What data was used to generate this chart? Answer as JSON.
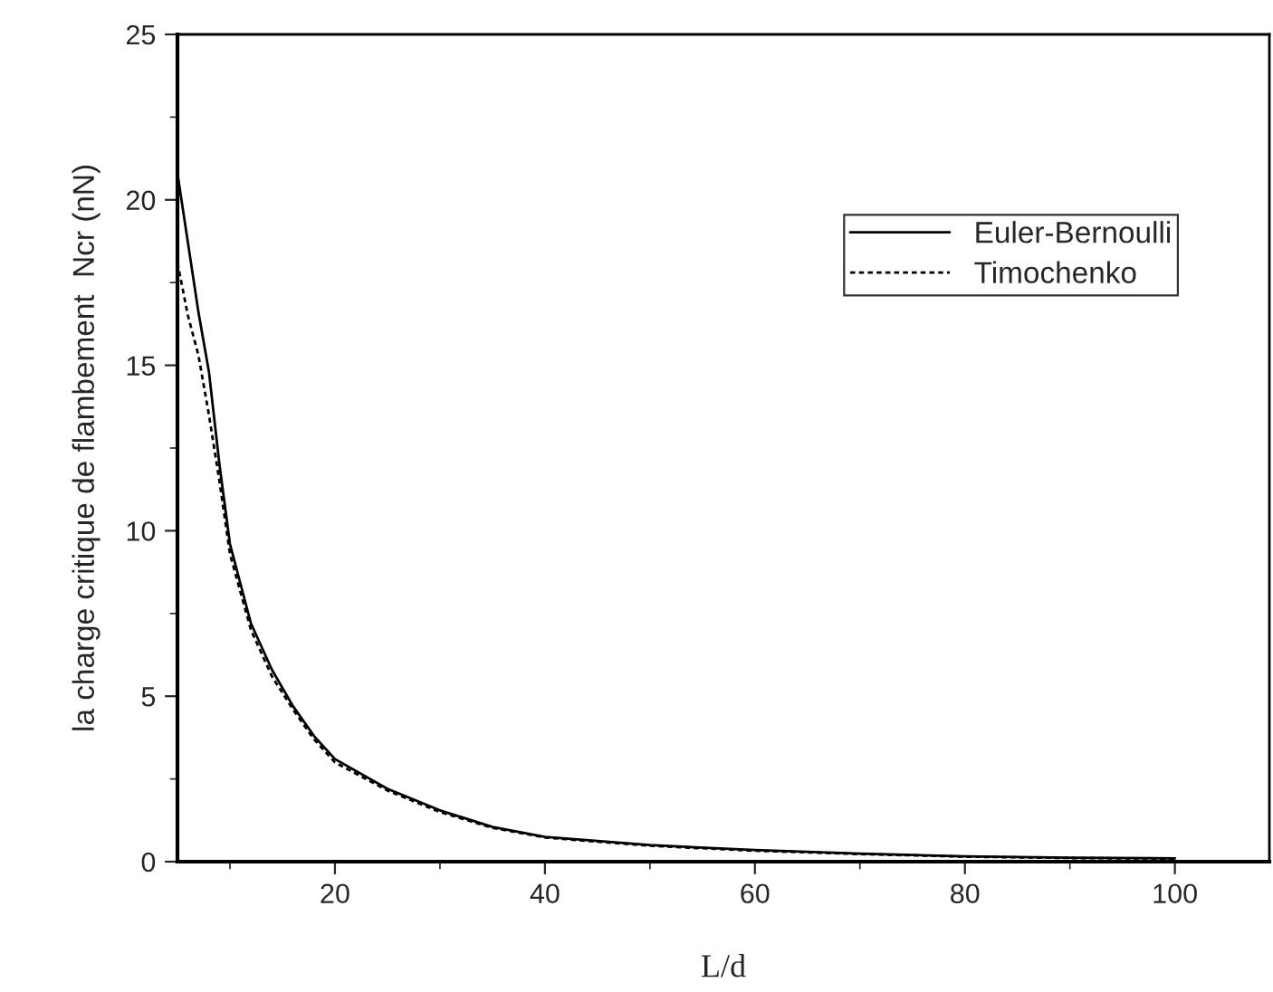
{
  "chart_data": {
    "type": "line",
    "xlabel": "L/d",
    "ylabel": "la charge critique de flambement  Ncr (nN)",
    "xlim": [
      5,
      109
    ],
    "ylim": [
      0,
      25
    ],
    "xticks": [
      20,
      40,
      60,
      80,
      100
    ],
    "yticks": [
      0,
      5,
      10,
      15,
      20,
      25
    ],
    "grid": false,
    "legend": "top right",
    "marker": "none",
    "series": [
      {
        "name": "Euler-Bernoulli",
        "color": "#000000",
        "line_style": "solid",
        "x": [
          5,
          6,
          7,
          8,
          9,
          10,
          12,
          14,
          16,
          18,
          20,
          25,
          30,
          35,
          40,
          50,
          60,
          70,
          80,
          90,
          100
        ],
        "values": [
          20.8,
          18.7,
          16.6,
          14.8,
          12.0,
          9.6,
          7.2,
          5.8,
          4.7,
          3.8,
          3.1,
          2.2,
          1.55,
          1.05,
          0.75,
          0.5,
          0.35,
          0.24,
          0.16,
          0.12,
          0.1
        ]
      },
      {
        "name": "Timochenko",
        "color": "#000000",
        "line_style": "dotted",
        "x": [
          5,
          6,
          7,
          8,
          9,
          10,
          12,
          14,
          16,
          18,
          20,
          25,
          30,
          35,
          40,
          50,
          60,
          70,
          80,
          90,
          100
        ],
        "values": [
          18.1,
          16.5,
          15.3,
          13.5,
          11.5,
          9.3,
          7.0,
          5.6,
          4.6,
          3.7,
          3.0,
          2.15,
          1.5,
          1.02,
          0.73,
          0.48,
          0.33,
          0.23,
          0.15,
          0.11,
          0.09
        ]
      }
    ]
  }
}
